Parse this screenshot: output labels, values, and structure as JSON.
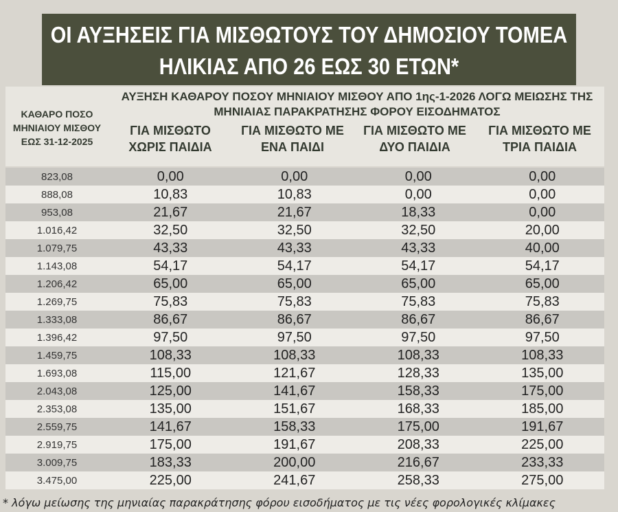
{
  "header": {
    "title_lines": [
      "ΟΙ ΑΥΞΗΣΕΙΣ ΓΙΑ ΜΙΣΘΩΤΟΥΣ ΤΟΥ ΔΗΜΟΣΙΟΥ ΤΟΜΕΑ",
      "ΗΛΙΚΙΑΣ ΑΠΟ 26 ΕΩΣ 30 ΕΤΩΝ*"
    ]
  },
  "table": {
    "first_column_header": "ΚΑΘΑΡΟ ΠΟΣΟ ΜΗΝΙΑΙΟΥ ΜΙΣΘΟΥ ΕΩΣ 31-12-2025",
    "group_header": "ΑΥΞΗΣΗ ΚΑΘΑΡΟΥ ΠΟΣΟΥ ΜΗΝΙΑΙΟΥ ΜΙΣΘΟΥ ΑΠΟ 1ης-1-2026 ΛΟΓΩ ΜΕΙΩΣΗΣ ΤΗΣ ΜΗΝΙΑΙΑΣ ΠΑΡΑΚΡΑΤΗΣΗΣ ΦΟΡΟΥ ΕΙΣΟΔΗΜΑΤΟΣ",
    "column_headers": [
      "ΓΙΑ ΜΙΣΘΩΤΟ ΧΩΡΙΣ ΠΑΙΔΙΑ",
      "ΓΙΑ ΜΙΣΘΩΤΟ ΜΕ ΕΝΑ ΠΑΙΔΙ",
      "ΓΙΑ ΜΙΣΘΩΤΟ ΜΕ ΔΥΟ ΠΑΙΔΙΑ",
      "ΓΙΑ ΜΙΣΘΩΤΟ ΜΕ ΤΡΙΑ ΠΑΙΔΙΑ"
    ],
    "rows": [
      [
        "823,08",
        "0,00",
        "0,00",
        "0,00",
        "0,00"
      ],
      [
        "888,08",
        "10,83",
        "10,83",
        "0,00",
        "0,00"
      ],
      [
        "953,08",
        "21,67",
        "21,67",
        "18,33",
        "0,00"
      ],
      [
        "1.016,42",
        "32,50",
        "32,50",
        "32,50",
        "20,00"
      ],
      [
        "1.079,75",
        "43,33",
        "43,33",
        "43,33",
        "40,00"
      ],
      [
        "1.143,08",
        "54,17",
        "54,17",
        "54,17",
        "54,17"
      ],
      [
        "1.206,42",
        "65,00",
        "65,00",
        "65,00",
        "65,00"
      ],
      [
        "1.269,75",
        "75,83",
        "75,83",
        "75,83",
        "75,83"
      ],
      [
        "1.333,08",
        "86,67",
        "86,67",
        "86,67",
        "86,67"
      ],
      [
        "1.396,42",
        "97,50",
        "97,50",
        "97,50",
        "97,50"
      ],
      [
        "1.459,75",
        "108,33",
        "108,33",
        "108,33",
        "108,33"
      ],
      [
        "1.693,08",
        "115,00",
        "121,67",
        "128,33",
        "135,00"
      ],
      [
        "2.043,08",
        "125,00",
        "141,67",
        "158,33",
        "175,00"
      ],
      [
        "2.353,08",
        "135,00",
        "151,67",
        "168,33",
        "185,00"
      ],
      [
        "2.559,75",
        "141,67",
        "158,33",
        "175,00",
        "191,67"
      ],
      [
        "2.919,75",
        "175,00",
        "191,67",
        "208,33",
        "225,00"
      ],
      [
        "3.009,75",
        "183,33",
        "200,00",
        "216,67",
        "233,33"
      ],
      [
        "3.475,00",
        "225,00",
        "241,67",
        "258,33",
        "275,00"
      ]
    ]
  },
  "footnote": "* λόγω μείωσης της μηνιαίας παρακράτησης φόρου εισοδήματος με τις νέες φορολογικές κλίμακες"
}
